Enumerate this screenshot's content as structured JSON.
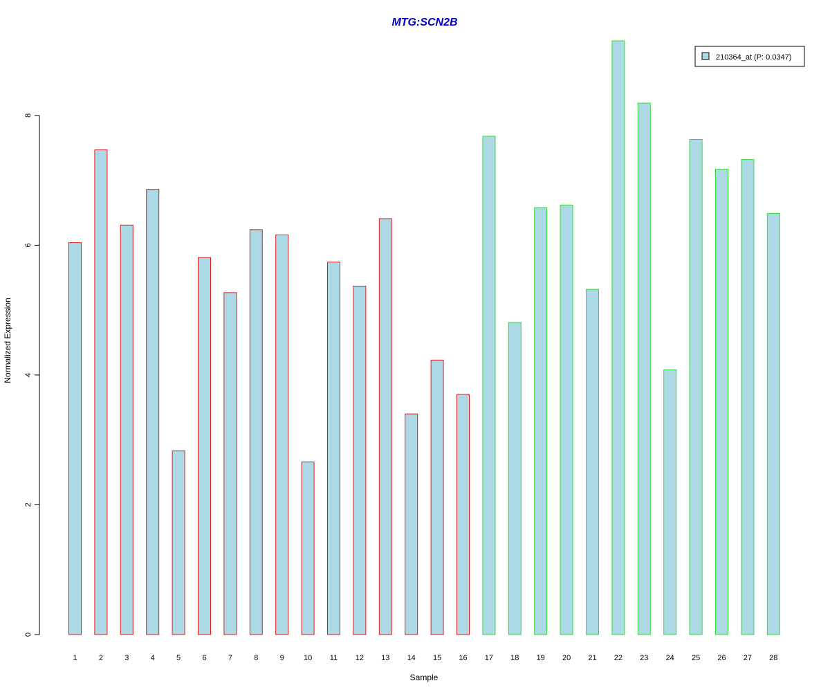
{
  "chart_data": {
    "type": "bar",
    "title": "MTG:SCN2B",
    "xlabel": "Sample",
    "ylabel": "Normalized Expression",
    "categories": [
      "1",
      "2",
      "3",
      "4",
      "5",
      "6",
      "7",
      "8",
      "9",
      "10",
      "11",
      "12",
      "13",
      "14",
      "15",
      "16",
      "17",
      "18",
      "19",
      "20",
      "21",
      "22",
      "23",
      "24",
      "25",
      "26",
      "27",
      "28"
    ],
    "series": [
      {
        "name": "210364_at (P: 0.0347)",
        "values": [
          6.04,
          7.47,
          6.31,
          6.86,
          2.83,
          5.81,
          5.27,
          6.24,
          6.16,
          2.66,
          5.74,
          5.37,
          6.41,
          3.4,
          4.23,
          3.7,
          7.68,
          4.81,
          6.58,
          6.62,
          5.32,
          9.15,
          8.19,
          4.08,
          7.63,
          7.17,
          7.32,
          6.49
        ]
      }
    ],
    "ylim": [
      0,
      9.15
    ],
    "yticks": [
      0,
      2,
      4,
      6,
      8
    ],
    "groups": [
      {
        "from": 1,
        "to": 16,
        "border_color": "#e31a1c"
      },
      {
        "from": 17,
        "to": 28,
        "border_color": "#33dd33"
      }
    ],
    "bar_fill": "#add8e6",
    "title_color": "#0000cc",
    "grid": false,
    "legend_position": "top-right"
  }
}
